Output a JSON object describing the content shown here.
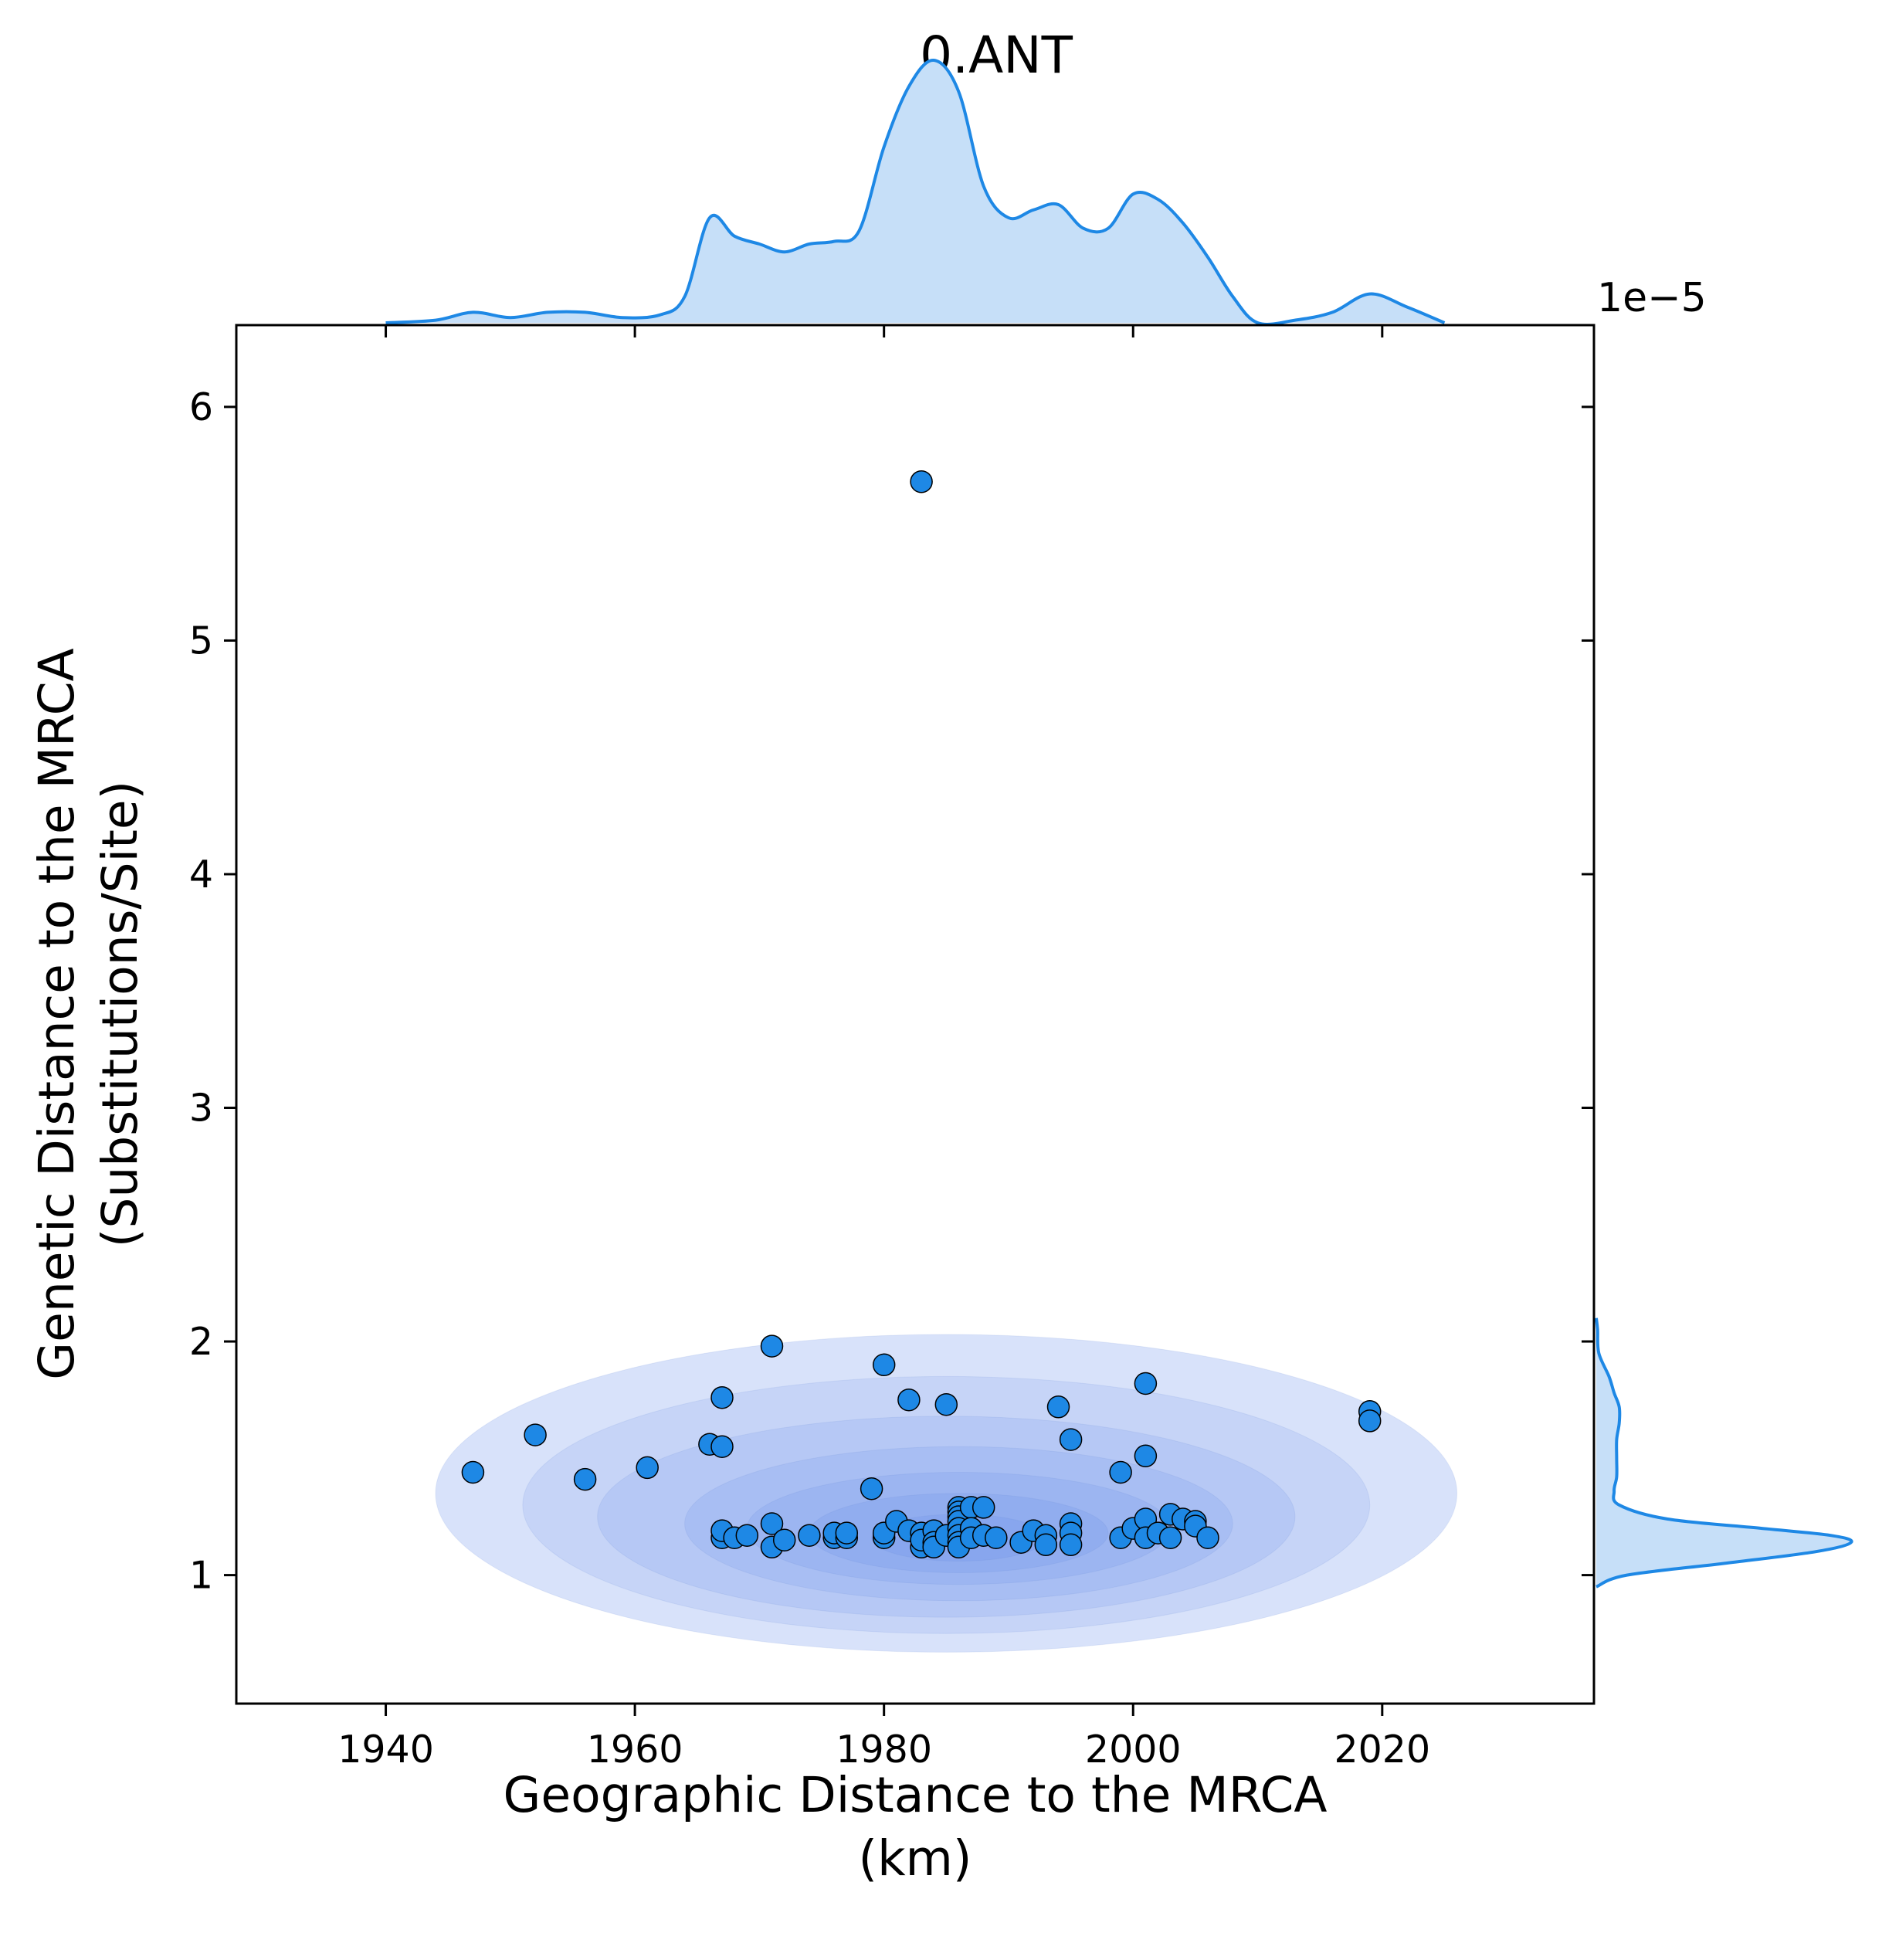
{
  "chart_data": {
    "type": "scatter",
    "title": "0.ANT",
    "xlabel": [
      "Geographic Distance to the MRCA",
      "(km)"
    ],
    "ylabel": [
      "Genetic Distance to the MRCA",
      "(Substitutions/Site)"
    ],
    "y_offset_text": "1e−5",
    "xlim": [
      1928,
      2037
    ],
    "ylim": [
      0.45,
      6.35
    ],
    "x_ticks": [
      1940,
      1960,
      1980,
      2000,
      2020
    ],
    "y_ticks": [
      1,
      2,
      3,
      4,
      5,
      6
    ],
    "grid": false,
    "legend": "none",
    "colors": {
      "points": "#1e88e5",
      "point_edge": "#000000",
      "marginal_line": "#1e88e5",
      "marginal_fill": "#c6dff8",
      "kde_contour": "#4f7be8"
    },
    "marginal_x_density": {
      "x": [
        1940,
        1944,
        1947,
        1950,
        1953,
        1956,
        1959,
        1962,
        1964,
        1966,
        1968,
        1970,
        1972,
        1974,
        1976,
        1978,
        1980,
        1982,
        1984,
        1986,
        1988,
        1990,
        1992,
        1994,
        1996,
        1998,
        2000,
        2002,
        2004,
        2006,
        2008,
        2010,
        2013,
        2016,
        2019,
        2022,
        2025
      ],
      "density": [
        0.0,
        0.01,
        0.04,
        0.02,
        0.04,
        0.04,
        0.02,
        0.03,
        0.1,
        0.4,
        0.33,
        0.3,
        0.27,
        0.3,
        0.31,
        0.35,
        0.67,
        0.9,
        1.0,
        0.88,
        0.52,
        0.4,
        0.43,
        0.45,
        0.36,
        0.36,
        0.49,
        0.47,
        0.38,
        0.25,
        0.1,
        0.0,
        0.01,
        0.04,
        0.11,
        0.06,
        0.0
      ]
    },
    "marginal_y_density": {
      "y": [
        0.95,
        1.0,
        1.05,
        1.1,
        1.14,
        1.17,
        1.2,
        1.24,
        1.3,
        1.36,
        1.42,
        1.5,
        1.58,
        1.65,
        1.72,
        1.78,
        1.85,
        1.95,
        2.05,
        2.1
      ],
      "density": [
        0.0,
        0.12,
        0.5,
        0.86,
        1.0,
        0.92,
        0.65,
        0.28,
        0.09,
        0.07,
        0.08,
        0.08,
        0.08,
        0.09,
        0.09,
        0.07,
        0.05,
        0.01,
        0.005,
        0.0
      ]
    },
    "kde_levels": [
      {
        "cx": 1985,
        "cy": 1.35,
        "rx": 41,
        "ry": 0.68
      },
      {
        "cx": 1985,
        "cy": 1.3,
        "rx": 34,
        "ry": 0.55
      },
      {
        "cx": 1985,
        "cy": 1.25,
        "rx": 28,
        "ry": 0.43
      },
      {
        "cx": 1986,
        "cy": 1.22,
        "rx": 22,
        "ry": 0.33
      },
      {
        "cx": 1986,
        "cy": 1.2,
        "rx": 17,
        "ry": 0.24
      },
      {
        "cx": 1986,
        "cy": 1.18,
        "rx": 12,
        "ry": 0.17
      },
      {
        "cx": 1986,
        "cy": 1.16,
        "rx": 7,
        "ry": 0.1
      }
    ],
    "points": [
      [
        1947,
        1.44
      ],
      [
        1952,
        1.6
      ],
      [
        1956,
        1.41
      ],
      [
        1961,
        1.46
      ],
      [
        1966,
        1.56
      ],
      [
        1967,
        1.55
      ],
      [
        1967,
        1.76
      ],
      [
        1967,
        1.16
      ],
      [
        1967,
        1.19
      ],
      [
        1968,
        1.16
      ],
      [
        1969,
        1.17
      ],
      [
        1971,
        1.98
      ],
      [
        1971,
        1.22
      ],
      [
        1971,
        1.12
      ],
      [
        1972,
        1.15
      ],
      [
        1974,
        1.17
      ],
      [
        1976,
        1.16
      ],
      [
        1976,
        1.18
      ],
      [
        1977,
        1.16
      ],
      [
        1977,
        1.18
      ],
      [
        1979,
        1.37
      ],
      [
        1980,
        1.9
      ],
      [
        1980,
        1.16
      ],
      [
        1980,
        1.18
      ],
      [
        1981,
        1.23
      ],
      [
        1982,
        1.75
      ],
      [
        1982,
        1.19
      ],
      [
        1983,
        5.68
      ],
      [
        1983,
        1.18
      ],
      [
        1983,
        1.12
      ],
      [
        1983,
        1.15
      ],
      [
        1984,
        1.19
      ],
      [
        1984,
        1.14
      ],
      [
        1984,
        1.12
      ],
      [
        1985,
        1.73
      ],
      [
        1985,
        1.17
      ],
      [
        1986,
        1.29
      ],
      [
        1986,
        1.27
      ],
      [
        1986,
        1.25
      ],
      [
        1986,
        1.23
      ],
      [
        1986,
        1.2
      ],
      [
        1986,
        1.17
      ],
      [
        1986,
        1.14
      ],
      [
        1986,
        1.12
      ],
      [
        1987,
        1.29
      ],
      [
        1987,
        1.2
      ],
      [
        1987,
        1.16
      ],
      [
        1988,
        1.29
      ],
      [
        1988,
        1.17
      ],
      [
        1989,
        1.16
      ],
      [
        1991,
        1.14
      ],
      [
        1992,
        1.19
      ],
      [
        1993,
        1.17
      ],
      [
        1993,
        1.13
      ],
      [
        1994,
        1.72
      ],
      [
        1995,
        1.58
      ],
      [
        1995,
        1.22
      ],
      [
        1995,
        1.18
      ],
      [
        1995,
        1.13
      ],
      [
        1999,
        1.44
      ],
      [
        1999,
        1.16
      ],
      [
        2000,
        1.2
      ],
      [
        2001,
        1.82
      ],
      [
        2001,
        1.51
      ],
      [
        2001,
        1.24
      ],
      [
        2001,
        1.16
      ],
      [
        2002,
        1.18
      ],
      [
        2003,
        1.26
      ],
      [
        2003,
        1.16
      ],
      [
        2004,
        1.24
      ],
      [
        2005,
        1.23
      ],
      [
        2005,
        1.21
      ],
      [
        2006,
        1.16
      ],
      [
        2019,
        1.7
      ],
      [
        2019,
        1.66
      ]
    ]
  }
}
